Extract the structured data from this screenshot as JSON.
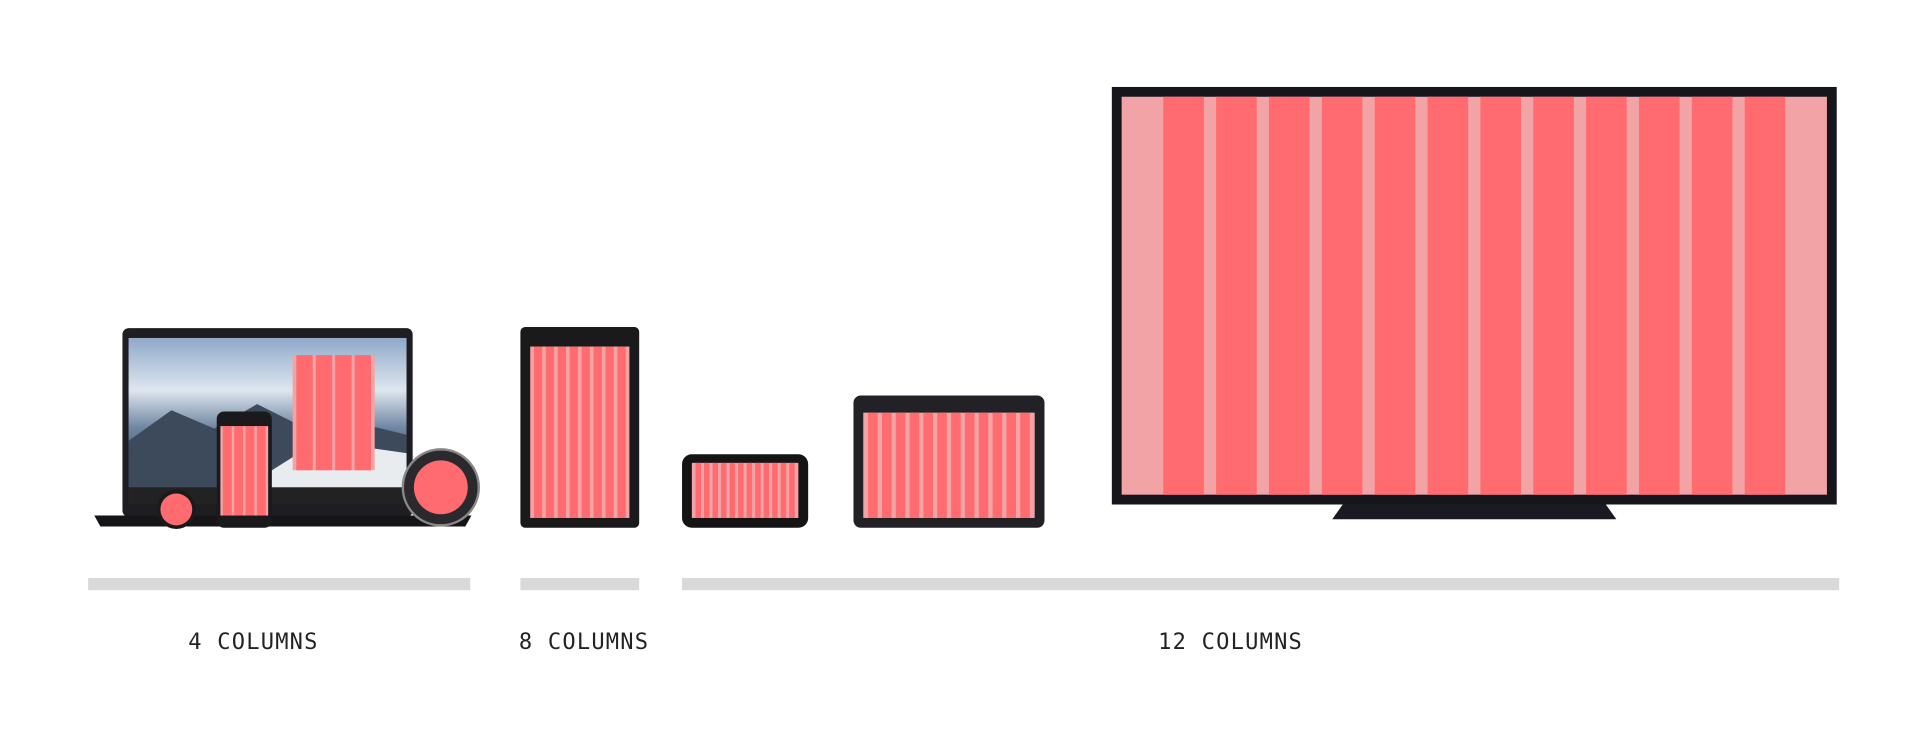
{
  "groups": [
    {
      "label": "4 COLUMNS"
    },
    {
      "label": "8 COLUMNS"
    },
    {
      "label": "12 COLUMNS"
    }
  ]
}
